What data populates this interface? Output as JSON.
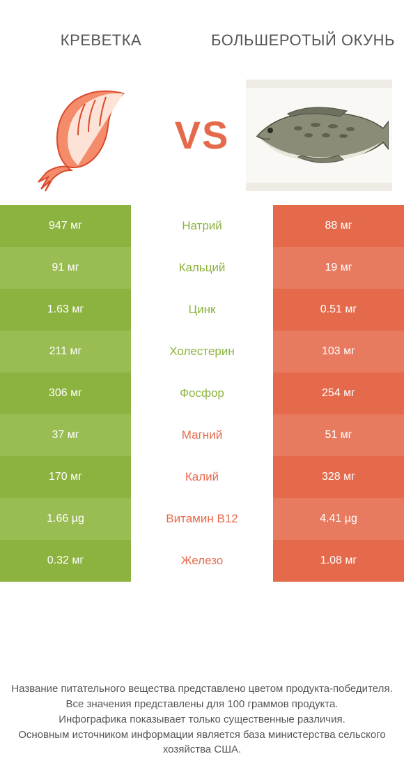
{
  "colors": {
    "left": "#8cb33f",
    "right": "#e56a4c",
    "left_light": "#99bc53",
    "right_light": "#e87a5f",
    "name_left": "#8cb33f",
    "name_right": "#e56a4c",
    "text": "#555555",
    "bg": "#ffffff"
  },
  "header": {
    "left": "КРЕВЕТКА",
    "right": "БОЛЬШЕРОТЫЙ ОКУНЬ",
    "vs": "VS"
  },
  "rows": [
    {
      "name": "Натрий",
      "left": "947 мг",
      "right": "88 мг",
      "winner": "left"
    },
    {
      "name": "Кальций",
      "left": "91 мг",
      "right": "19 мг",
      "winner": "left"
    },
    {
      "name": "Цинк",
      "left": "1.63 мг",
      "right": "0.51 мг",
      "winner": "left"
    },
    {
      "name": "Холестерин",
      "left": "211 мг",
      "right": "103 мг",
      "winner": "left"
    },
    {
      "name": "Фосфор",
      "left": "306 мг",
      "right": "254 мг",
      "winner": "left"
    },
    {
      "name": "Магний",
      "left": "37 мг",
      "right": "51 мг",
      "winner": "right"
    },
    {
      "name": "Калий",
      "left": "170 мг",
      "right": "328 мг",
      "winner": "right"
    },
    {
      "name": "Витамин B12",
      "left": "1.66 µg",
      "right": "4.41 µg",
      "winner": "right"
    },
    {
      "name": "Железо",
      "left": "0.32 мг",
      "right": "1.08 мг",
      "winner": "right"
    }
  ],
  "footer": {
    "l1": "Название питательного вещества представлено цветом продукта-победителя.",
    "l2": "Все значения представлены для 100 граммов продукта.",
    "l3": "Инфографика показывает только существенные различия.",
    "l4": "Основным источником информации является база министерства сельского хозяйства США."
  }
}
